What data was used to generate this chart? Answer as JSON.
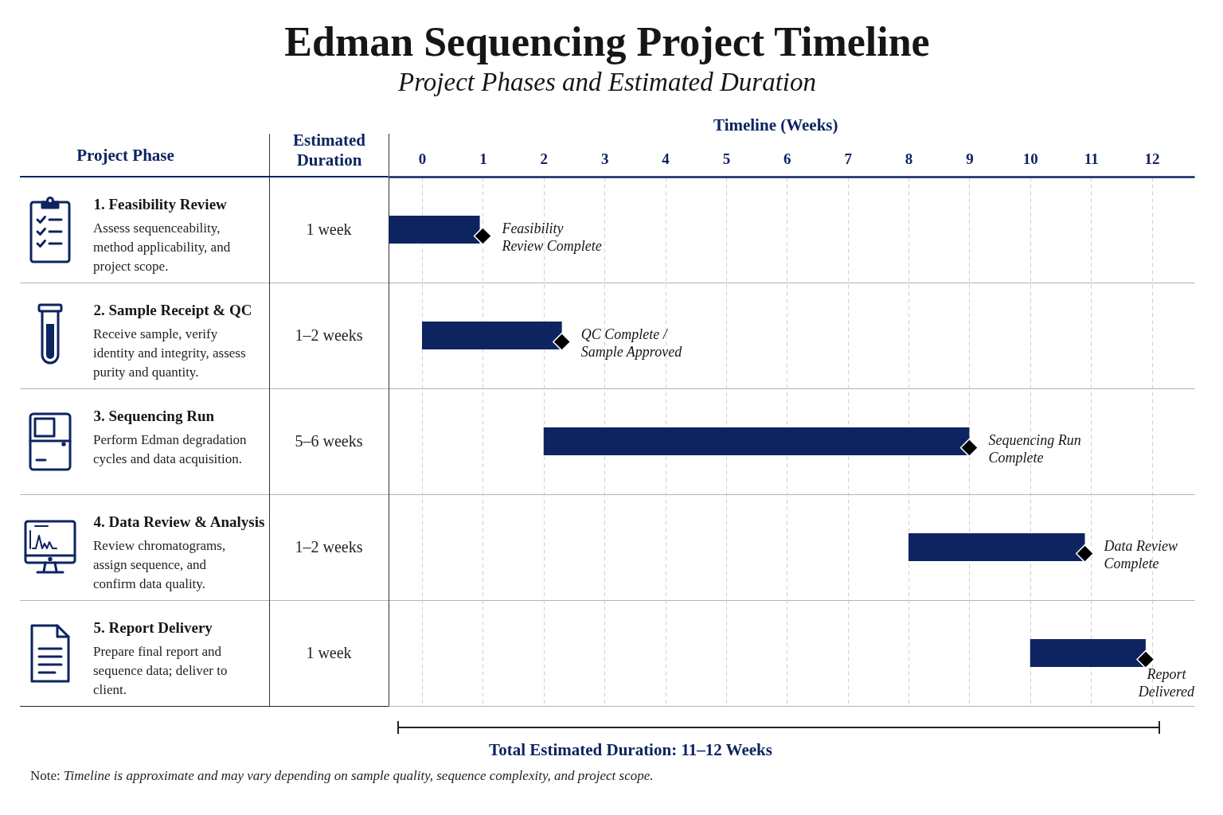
{
  "chart_data": {
    "type": "bar",
    "orientation": "horizontal",
    "title": "Edman Sequencing Project Timeline",
    "subtitle": "Project Phases and Estimated Duration",
    "xlabel": "Timeline (Weeks)",
    "ylabel": "Project Phase",
    "y2label": "Estimated Duration",
    "categories": [
      "1. Feasibility Review",
      "2. Sample Receipt & QC",
      "3. Sequencing Run",
      "4. Data Review & Analysis",
      "5. Report Delivery"
    ],
    "y2_categories": [
      "1 week",
      "1–2 weeks",
      "5–6 weeks",
      "1–2 weeks",
      "1 week"
    ],
    "series": [
      {
        "color": "#0d2461",
        "base": [
          -0.55,
          0,
          2,
          8,
          10
        ],
        "values": [
          1.5,
          2.3,
          7.0,
          2.9,
          1.9
        ]
      },
      {
        "type": "scatter",
        "color": "#000000",
        "values": [
          1,
          2.3,
          9,
          10.9,
          11.9
        ]
      }
    ],
    "marker": "diamond",
    "xlim": [
      -0.55,
      12.7
    ],
    "xticks": [
      0,
      1,
      2,
      3,
      4,
      5,
      6,
      7,
      8,
      9,
      10,
      11,
      12
    ],
    "grid": true,
    "annotations": [
      "Assess sequenceability, method applicability, and project scope.",
      "Receive sample, verify identity and integrity, assess purity and quantity.",
      "Perform Edman degradation cycles and data acquisition.",
      "Review chromatograms, assign sequence, and confirm data quality.",
      "Prepare final report and sequence data; deliver to client.",
      "Feasibility Review Complete",
      "QC Complete / Sample Approved",
      "Sequencing Run Complete",
      "Data Review Complete",
      "Report Delivered",
      "Total Estimated Duration: 11–12 Weeks",
      "Note: Timeline is approximate and may vary depending on sample quality, sequence complexity, and project scope."
    ]
  }
}
